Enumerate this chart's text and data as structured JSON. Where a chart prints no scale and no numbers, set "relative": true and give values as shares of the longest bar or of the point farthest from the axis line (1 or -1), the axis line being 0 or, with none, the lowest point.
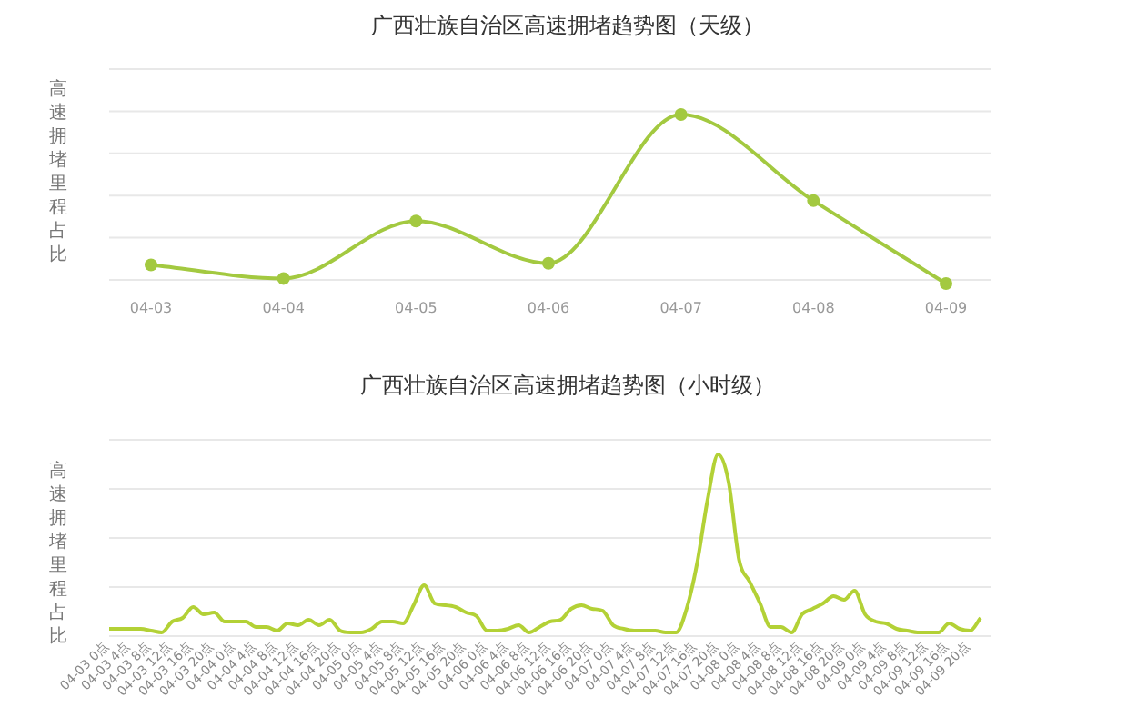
{
  "chart_data": [
    {
      "type": "line",
      "title": "广西壮族自治区高速拥堵趋势图（天级）",
      "ylabel": "高速拥堵里程占比",
      "relative": true,
      "grid": true,
      "marker": "circle",
      "categories": [
        "04-03",
        "04-04",
        "04-05",
        "04-06",
        "04-07",
        "04-08",
        "04-09"
      ],
      "series": [
        {
          "color": "#a3c940",
          "values": [
            0.11,
            0.03,
            0.37,
            0.12,
            1,
            0.49,
            0
          ]
        }
      ]
    },
    {
      "type": "line",
      "title": "广西壮族自治区高速拥堵趋势图（小时级）",
      "ylabel": "高速拥堵里程占比",
      "relative": true,
      "grid": true,
      "marker": "none",
      "categories": [
        "04-03 0点",
        null,
        "04-03 4点",
        null,
        "04-03 8点",
        null,
        "04-03 12点",
        null,
        "04-03 16点",
        null,
        "04-03 20点",
        null,
        "04-04 0点",
        null,
        "04-04 4点",
        null,
        "04-04 8点",
        null,
        "04-04 12点",
        null,
        "04-04 16点",
        null,
        "04-04 20点",
        null,
        "04-05 0点",
        null,
        "04-05 4点",
        null,
        "04-05 8点",
        null,
        "04-05 12点",
        null,
        "04-05 16点",
        null,
        "04-05 20点",
        null,
        "04-06 0点",
        null,
        "04-06 4点",
        null,
        "04-06 8点",
        null,
        "04-06 12点",
        null,
        "04-06 16点",
        null,
        "04-06 20点",
        null,
        "04-07 0点",
        null,
        "04-07 4点",
        null,
        "04-07 8点",
        null,
        "04-07 12点",
        null,
        "04-07 16点",
        null,
        "04-07 20点",
        null,
        "04-08 0点",
        null,
        "04-08 4点",
        null,
        "04-08 8点",
        null,
        "04-08 12点",
        null,
        "04-08 16点",
        null,
        "04-08 20点",
        null,
        "04-09 0点",
        null,
        "04-09 4点",
        null,
        "04-09 8点",
        null,
        "04-09 12点",
        null,
        "04-09 16点",
        null,
        "04-09 20点",
        null
      ],
      "series": [
        {
          "color": "#b3d136",
          "values": [
            0.04,
            0.04,
            0.04,
            0.04,
            0.03,
            0.02,
            0.08,
            0.1,
            0.16,
            0.12,
            0.13,
            0.08,
            0.08,
            0.08,
            0.05,
            0.05,
            0.03,
            0.07,
            0.06,
            0.09,
            0.06,
            0.09,
            0.03,
            0.02,
            0.02,
            0.04,
            0.08,
            0.08,
            0.07,
            0.17,
            0.28,
            0.18,
            0.17,
            0.16,
            0.13,
            0.11,
            0.03,
            0.03,
            0.04,
            0.06,
            0.02,
            0.05,
            0.08,
            0.09,
            0.15,
            0.17,
            0.15,
            0.14,
            0.06,
            0.04,
            0.03,
            0.03,
            0.03,
            0.02,
            0.02,
            0.15,
            0.4,
            0.75,
            1,
            0.85,
            0.42,
            0.3,
            0.18,
            0.05,
            0.05,
            0.02,
            0.12,
            0.15,
            0.18,
            0.22,
            0.2,
            0.25,
            0.12,
            0.08,
            0.07,
            0.04,
            0.03,
            0.02,
            0.02,
            0.02,
            0.07,
            0.04,
            0.03,
            0.1
          ]
        }
      ]
    }
  ]
}
